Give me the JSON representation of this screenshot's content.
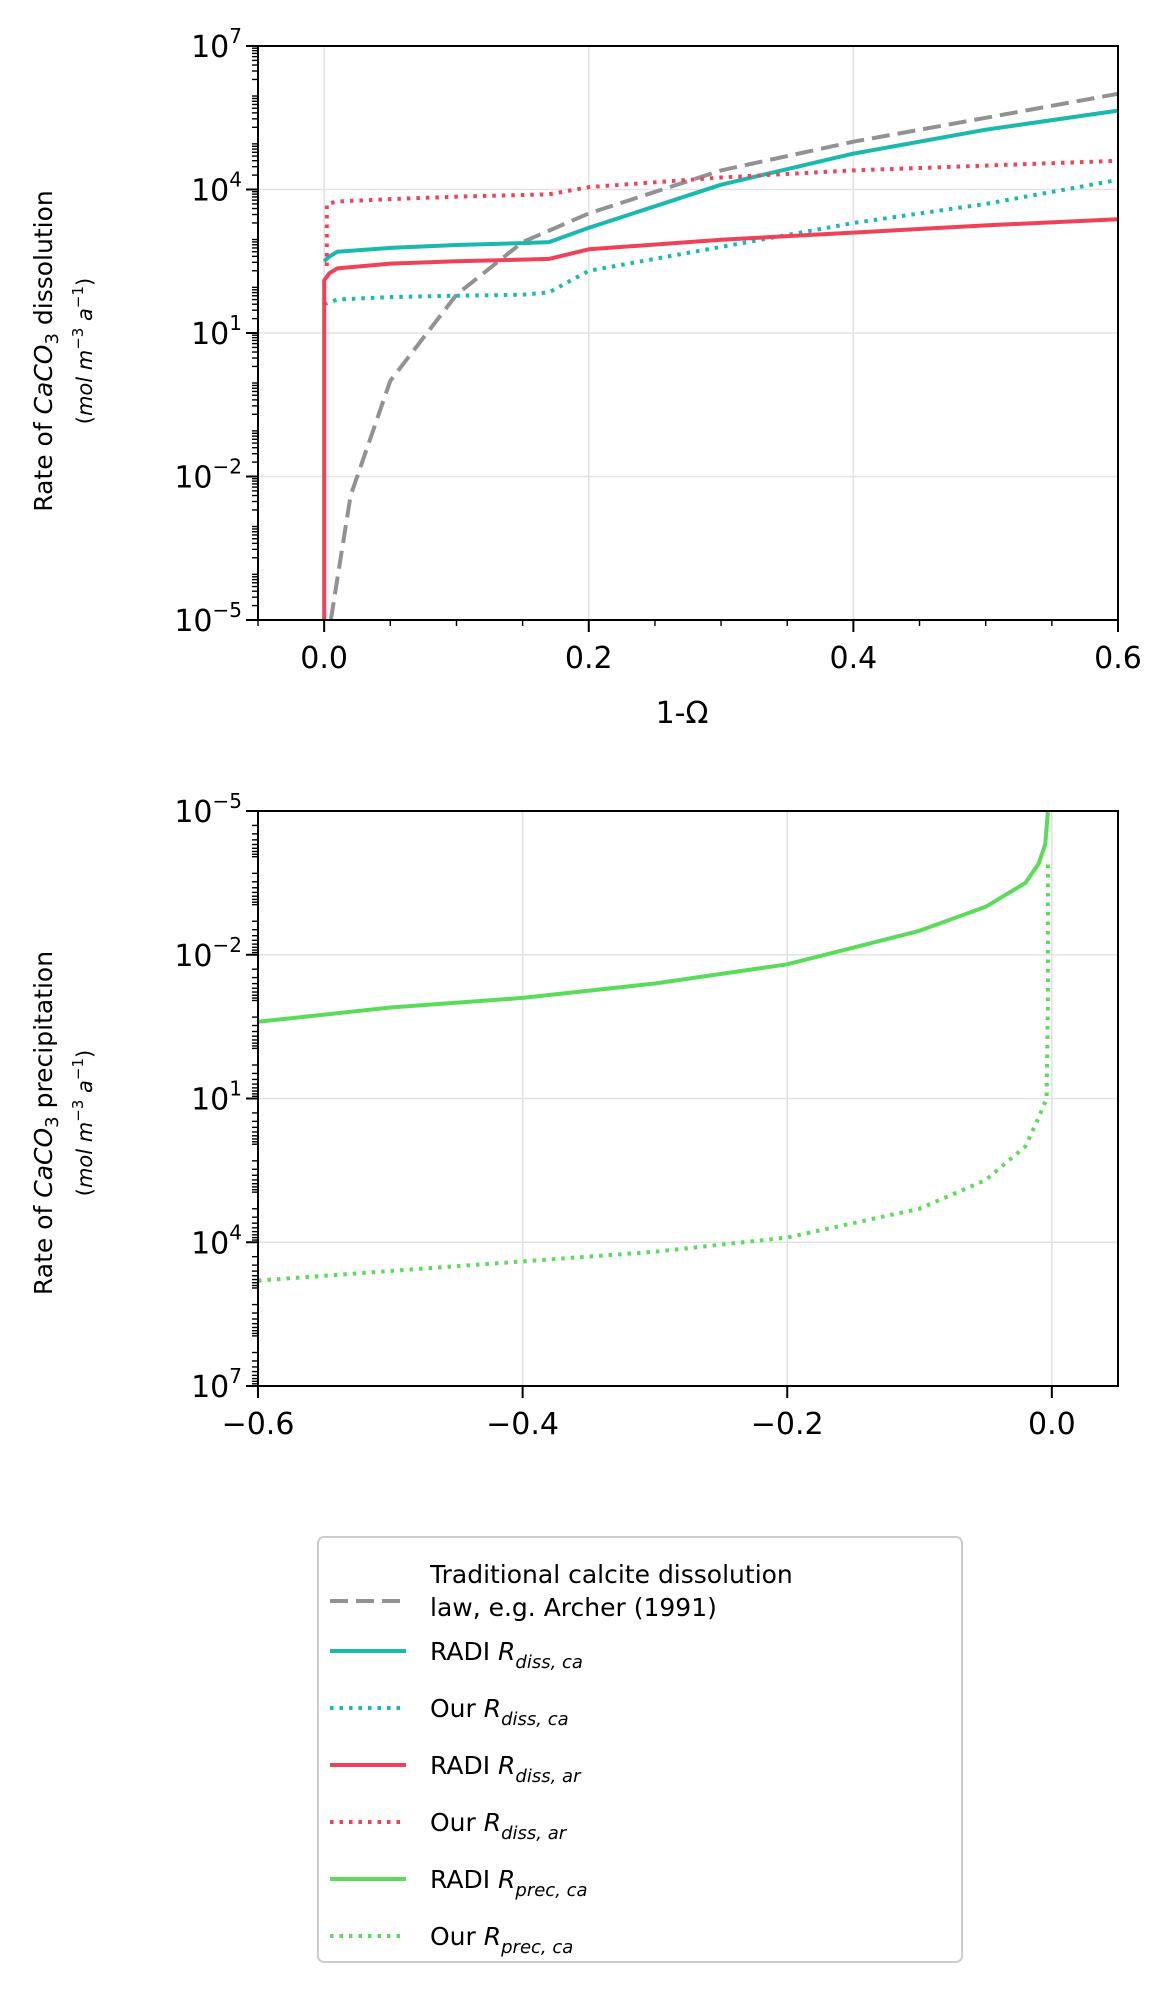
{
  "chart_data": [
    {
      "type": "line",
      "panel": "top",
      "xlabel": "1-Ω",
      "ylabel_line1": "Rate of CaCO3 dissolution",
      "ylabel_line2": "(mol m−3 a−1)",
      "xlim": [
        -0.05,
        0.6
      ],
      "ylim_exp": [
        -5,
        7
      ],
      "y_scale": "log",
      "x_ticks": [
        "0.0",
        "0.2",
        "0.4",
        "0.6"
      ],
      "y_ticks_exp": [
        "−5",
        "−2",
        "1",
        "4",
        "7"
      ],
      "grid": true,
      "series": [
        {
          "key": "archer",
          "color": "#929292",
          "style": "dashed",
          "x": [
            0.005,
            0.02,
            0.05,
            0.1,
            0.15,
            0.2,
            0.3,
            0.4,
            0.5,
            0.6
          ],
          "y_exp": [
            -5.0,
            -2.4,
            0.0,
            1.8,
            2.9,
            3.5,
            4.4,
            5.0,
            5.5,
            6.0
          ]
        },
        {
          "key": "radi_diss_ca",
          "color": "#1ab9ad",
          "style": "solid",
          "x": [
            0.0,
            0.004,
            0.01,
            0.05,
            0.1,
            0.15,
            0.17,
            0.2,
            0.3,
            0.4,
            0.5,
            0.6
          ],
          "y_exp": [
            2.5,
            2.6,
            2.7,
            2.78,
            2.84,
            2.88,
            2.9,
            3.2,
            4.1,
            4.75,
            5.25,
            5.65
          ]
        },
        {
          "key": "our_diss_ca",
          "color": "#1ab9ad",
          "style": "dotted",
          "x": [
            0.0,
            0.01,
            0.05,
            0.1,
            0.15,
            0.17,
            0.2,
            0.3,
            0.4,
            0.5,
            0.6
          ],
          "y_exp": [
            1.6,
            1.7,
            1.75,
            1.78,
            1.8,
            1.85,
            2.3,
            2.8,
            3.3,
            3.7,
            4.2
          ]
        },
        {
          "key": "radi_diss_ar",
          "color": "#ef4258",
          "style": "solid",
          "x": [
            0.0,
            0.0,
            0.004,
            0.01,
            0.05,
            0.1,
            0.17,
            0.2,
            0.3,
            0.4,
            0.5,
            0.6
          ],
          "y_exp": [
            -5.0,
            2.1,
            2.25,
            2.35,
            2.45,
            2.5,
            2.55,
            2.75,
            2.95,
            3.1,
            3.25,
            3.38
          ]
        },
        {
          "key": "our_diss_ar",
          "color": "#ef4258",
          "style": "dotted",
          "x": [
            0.002,
            0.002,
            0.01,
            0.05,
            0.1,
            0.17,
            0.2,
            0.3,
            0.4,
            0.5,
            0.6
          ],
          "y_exp": [
            2.4,
            3.7,
            3.75,
            3.8,
            3.85,
            3.9,
            4.05,
            4.25,
            4.4,
            4.5,
            4.6
          ]
        }
      ]
    },
    {
      "type": "line",
      "panel": "bottom",
      "ylabel_line1": "Rate of CaCO3 precipitation",
      "ylabel_line2": "(mol m−3 a−1)",
      "xlim": [
        -0.6,
        0.05
      ],
      "ylim_exp": [
        -5,
        7
      ],
      "y_scale": "log",
      "y_inverted": true,
      "x_ticks": [
        "−0.6",
        "−0.4",
        "−0.2",
        "0.0"
      ],
      "y_ticks_exp": [
        "−5",
        "−2",
        "1",
        "4",
        "7"
      ],
      "grid": true,
      "series": [
        {
          "key": "radi_prec_ca",
          "color": "#5adc5a",
          "style": "solid",
          "x": [
            -0.6,
            -0.5,
            -0.4,
            -0.3,
            -0.2,
            -0.1,
            -0.05,
            -0.02,
            -0.01,
            -0.005,
            -0.003
          ],
          "y_exp": [
            -0.6,
            -0.9,
            -1.1,
            -1.4,
            -1.8,
            -2.5,
            -3.0,
            -3.5,
            -3.9,
            -4.3,
            -5.0
          ]
        },
        {
          "key": "our_prec_ca",
          "color": "#5adc5a",
          "style": "dotted",
          "x": [
            -0.6,
            -0.5,
            -0.4,
            -0.3,
            -0.2,
            -0.1,
            -0.05,
            -0.02,
            -0.01,
            -0.004,
            -0.003,
            -0.003
          ],
          "y_exp": [
            4.8,
            4.6,
            4.4,
            4.2,
            3.9,
            3.3,
            2.7,
            2.0,
            1.4,
            1.0,
            -1.0,
            -4.0
          ]
        }
      ]
    }
  ],
  "legend": {
    "placement": "bottom-center",
    "items": [
      {
        "key": "archer",
        "color": "#929292",
        "style": "dashed",
        "lines": [
          "Traditional calcite dissolution",
          "law, e.g. Archer (1991)"
        ]
      },
      {
        "key": "radi_diss_ca",
        "color": "#1ab9ad",
        "style": "solid",
        "prefix": "RADI ",
        "sub": "diss, ca"
      },
      {
        "key": "our_diss_ca",
        "color": "#1ab9ad",
        "style": "dotted",
        "prefix": "Our ",
        "sub": "diss, ca"
      },
      {
        "key": "radi_diss_ar",
        "color": "#ef4258",
        "style": "solid",
        "prefix": "RADI ",
        "sub": "diss, ar"
      },
      {
        "key": "our_diss_ar",
        "color": "#ef4258",
        "style": "dotted",
        "prefix": "Our ",
        "sub": "diss, ar"
      },
      {
        "key": "radi_prec_ca",
        "color": "#5adc5a",
        "style": "solid",
        "prefix": "RADI ",
        "sub": "prec, ca"
      },
      {
        "key": "our_prec_ca",
        "color": "#5adc5a",
        "style": "dotted",
        "prefix": "Our ",
        "sub": "prec, ca"
      }
    ]
  }
}
